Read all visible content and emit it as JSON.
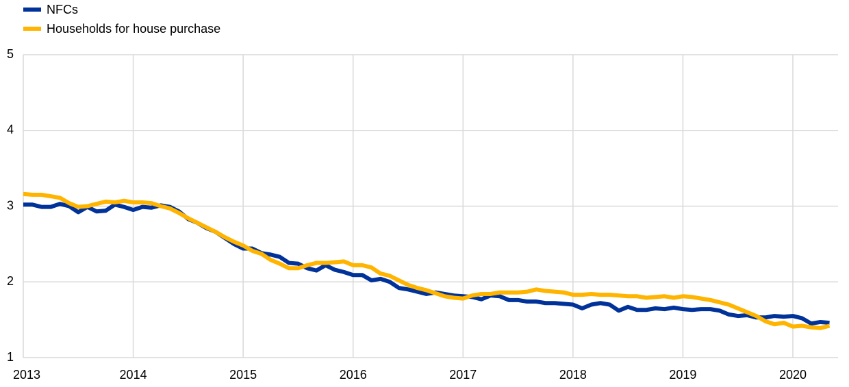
{
  "chart_data": {
    "type": "line",
    "categories": [
      "2013",
      null,
      null,
      null,
      null,
      null,
      null,
      null,
      null,
      null,
      null,
      null,
      "2014",
      null,
      null,
      null,
      null,
      null,
      null,
      null,
      null,
      null,
      null,
      null,
      "2015",
      null,
      null,
      null,
      null,
      null,
      null,
      null,
      null,
      null,
      null,
      null,
      "2016",
      null,
      null,
      null,
      null,
      null,
      null,
      null,
      null,
      null,
      null,
      null,
      "2017",
      null,
      null,
      null,
      null,
      null,
      null,
      null,
      null,
      null,
      null,
      null,
      "2018",
      null,
      null,
      null,
      null,
      null,
      null,
      null,
      null,
      null,
      null,
      null,
      "2019",
      null,
      null,
      null,
      null,
      null,
      null,
      null,
      null,
      null,
      null,
      null,
      "2020",
      null,
      null,
      null,
      null
    ],
    "series": [
      {
        "name": "NFCs",
        "color": "#003299",
        "values": [
          3.02,
          3.02,
          2.99,
          2.99,
          3.03,
          3.0,
          2.92,
          2.99,
          2.93,
          2.94,
          3.02,
          2.99,
          2.95,
          2.99,
          2.98,
          3.01,
          2.99,
          2.93,
          2.83,
          2.78,
          2.71,
          2.66,
          2.58,
          2.5,
          2.44,
          2.44,
          2.38,
          2.36,
          2.33,
          2.25,
          2.24,
          2.18,
          2.15,
          2.22,
          2.16,
          2.13,
          2.09,
          2.09,
          2.02,
          2.04,
          2.0,
          1.92,
          1.9,
          1.87,
          1.84,
          1.86,
          1.84,
          1.82,
          1.81,
          1.8,
          1.77,
          1.82,
          1.81,
          1.76,
          1.76,
          1.74,
          1.74,
          1.72,
          1.72,
          1.71,
          1.7,
          1.65,
          1.7,
          1.72,
          1.7,
          1.62,
          1.67,
          1.63,
          1.63,
          1.65,
          1.64,
          1.66,
          1.64,
          1.63,
          1.64,
          1.64,
          1.62,
          1.57,
          1.55,
          1.56,
          1.53,
          1.53,
          1.55,
          1.54,
          1.55,
          1.52,
          1.45,
          1.47,
          1.46
        ]
      },
      {
        "name": "Households for house purchase",
        "color": "#ffb400",
        "values": [
          3.16,
          3.15,
          3.15,
          3.13,
          3.11,
          3.04,
          2.99,
          3.0,
          3.03,
          3.06,
          3.05,
          3.07,
          3.05,
          3.05,
          3.04,
          3.0,
          2.97,
          2.91,
          2.84,
          2.78,
          2.72,
          2.66,
          2.59,
          2.53,
          2.48,
          2.41,
          2.37,
          2.29,
          2.24,
          2.18,
          2.18,
          2.22,
          2.25,
          2.25,
          2.26,
          2.27,
          2.22,
          2.22,
          2.19,
          2.11,
          2.08,
          2.02,
          1.96,
          1.92,
          1.89,
          1.85,
          1.81,
          1.79,
          1.78,
          1.82,
          1.84,
          1.84,
          1.86,
          1.86,
          1.86,
          1.87,
          1.9,
          1.88,
          1.87,
          1.86,
          1.83,
          1.83,
          1.84,
          1.83,
          1.83,
          1.82,
          1.81,
          1.81,
          1.79,
          1.8,
          1.81,
          1.79,
          1.81,
          1.8,
          1.78,
          1.76,
          1.73,
          1.7,
          1.65,
          1.6,
          1.55,
          1.48,
          1.44,
          1.46,
          1.41,
          1.42,
          1.4,
          1.39,
          1.42
        ]
      }
    ],
    "ylim": [
      1,
      5
    ],
    "yticks": [
      1,
      2,
      3,
      4,
      5
    ],
    "grid": true,
    "legend": "top-left"
  }
}
